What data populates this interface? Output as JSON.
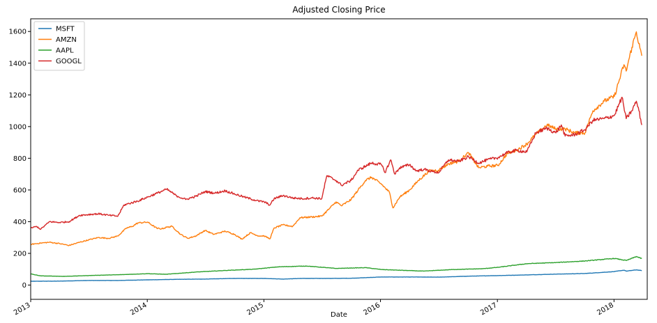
{
  "chart_data": {
    "type": "line",
    "title": "Adjusted Closing Price",
    "xlabel": "Date",
    "ylabel": "",
    "xlim": [
      "2013-01-01",
      "2018-04-15"
    ],
    "ylim": [
      -90,
      1680
    ],
    "x_ticks": [
      "2013",
      "2014",
      "2015",
      "2016",
      "2017",
      "2018"
    ],
    "y_ticks": [
      "0",
      "200",
      "400",
      "600",
      "800",
      "1000",
      "1200",
      "1400",
      "1600"
    ],
    "grid": false,
    "legend": {
      "position": "top-left"
    },
    "series": [
      {
        "name": "MSFT",
        "color": "#1f77b4",
        "points": [
          [
            "2013-01-02",
            24
          ],
          [
            "2013-04-01",
            25
          ],
          [
            "2013-07-01",
            29
          ],
          [
            "2013-10-01",
            29
          ],
          [
            "2014-01-02",
            33
          ],
          [
            "2014-04-01",
            36
          ],
          [
            "2014-07-01",
            38
          ],
          [
            "2014-10-01",
            42
          ],
          [
            "2015-01-02",
            42
          ],
          [
            "2015-03-01",
            38
          ],
          [
            "2015-05-01",
            42
          ],
          [
            "2015-07-01",
            42
          ],
          [
            "2015-10-01",
            43
          ],
          [
            "2016-01-04",
            51
          ],
          [
            "2016-04-01",
            51
          ],
          [
            "2016-07-01",
            50
          ],
          [
            "2016-10-01",
            56
          ],
          [
            "2017-01-03",
            60
          ],
          [
            "2017-04-01",
            64
          ],
          [
            "2017-07-01",
            69
          ],
          [
            "2017-10-02",
            73
          ],
          [
            "2018-01-02",
            85
          ],
          [
            "2018-02-01",
            94
          ],
          [
            "2018-02-09",
            88
          ],
          [
            "2018-03-12",
            96
          ],
          [
            "2018-03-29",
            91
          ]
        ]
      },
      {
        "name": "AMZN",
        "color": "#ff7f0e",
        "points": [
          [
            "2013-01-02",
            257
          ],
          [
            "2013-02-01",
            265
          ],
          [
            "2013-03-01",
            270
          ],
          [
            "2013-04-01",
            262
          ],
          [
            "2013-05-01",
            250
          ],
          [
            "2013-06-03",
            270
          ],
          [
            "2013-07-01",
            285
          ],
          [
            "2013-08-01",
            300
          ],
          [
            "2013-09-03",
            295
          ],
          [
            "2013-10-01",
            310
          ],
          [
            "2013-10-28",
            360
          ],
          [
            "2013-11-15",
            370
          ],
          [
            "2013-12-02",
            392
          ],
          [
            "2014-01-02",
            397
          ],
          [
            "2014-01-31",
            358
          ],
          [
            "2014-02-15",
            355
          ],
          [
            "2014-03-03",
            365
          ],
          [
            "2014-03-20",
            370
          ],
          [
            "2014-04-15",
            320
          ],
          [
            "2014-05-08",
            295
          ],
          [
            "2014-06-02",
            310
          ],
          [
            "2014-07-01",
            345
          ],
          [
            "2014-07-28",
            320
          ],
          [
            "2014-08-15",
            330
          ],
          [
            "2014-09-02",
            340
          ],
          [
            "2014-10-01",
            320
          ],
          [
            "2014-10-24",
            290
          ],
          [
            "2014-11-20",
            330
          ],
          [
            "2014-12-15",
            310
          ],
          [
            "2015-01-02",
            310
          ],
          [
            "2015-01-20",
            292
          ],
          [
            "2015-02-02",
            360
          ],
          [
            "2015-03-02",
            380
          ],
          [
            "2015-04-01",
            370
          ],
          [
            "2015-04-24",
            425
          ],
          [
            "2015-06-01",
            430
          ],
          [
            "2015-07-01",
            435
          ],
          [
            "2015-07-24",
            480
          ],
          [
            "2015-08-15",
            525
          ],
          [
            "2015-09-01",
            500
          ],
          [
            "2015-10-01",
            540
          ],
          [
            "2015-10-23",
            600
          ],
          [
            "2015-11-15",
            660
          ],
          [
            "2015-12-04",
            680
          ],
          [
            "2016-01-04",
            637
          ],
          [
            "2016-01-29",
            585
          ],
          [
            "2016-02-09",
            487
          ],
          [
            "2016-03-01",
            555
          ],
          [
            "2016-04-01",
            600
          ],
          [
            "2016-04-29",
            660
          ],
          [
            "2016-06-01",
            720
          ],
          [
            "2016-07-01",
            725
          ],
          [
            "2016-08-01",
            765
          ],
          [
            "2016-09-01",
            780
          ],
          [
            "2016-10-03",
            835
          ],
          [
            "2016-11-03",
            740
          ],
          [
            "2016-12-01",
            750
          ],
          [
            "2017-01-03",
            755
          ],
          [
            "2017-02-01",
            830
          ],
          [
            "2017-03-01",
            850
          ],
          [
            "2017-04-03",
            890
          ],
          [
            "2017-05-01",
            950
          ],
          [
            "2017-06-05",
            1010
          ],
          [
            "2017-07-03",
            985
          ],
          [
            "2017-08-01",
            985
          ],
          [
            "2017-09-01",
            960
          ],
          [
            "2017-10-02",
            960
          ],
          [
            "2017-10-27",
            1100
          ],
          [
            "2017-12-01",
            1160
          ],
          [
            "2018-01-02",
            1190
          ],
          [
            "2018-02-01",
            1390
          ],
          [
            "2018-02-08",
            1350
          ],
          [
            "2018-02-26",
            1500
          ],
          [
            "2018-03-12",
            1598
          ],
          [
            "2018-03-23",
            1495
          ],
          [
            "2018-03-29",
            1447
          ]
        ]
      },
      {
        "name": "AAPL",
        "color": "#2ca02c",
        "points": [
          [
            "2013-01-02",
            70
          ],
          [
            "2013-02-01",
            58
          ],
          [
            "2013-04-15",
            55
          ],
          [
            "2013-06-01",
            58
          ],
          [
            "2013-08-01",
            62
          ],
          [
            "2013-10-01",
            65
          ],
          [
            "2014-01-02",
            72
          ],
          [
            "2014-03-01",
            68
          ],
          [
            "2014-06-01",
            82
          ],
          [
            "2014-09-01",
            92
          ],
          [
            "2014-12-01",
            100
          ],
          [
            "2015-02-15",
            115
          ],
          [
            "2015-05-15",
            120
          ],
          [
            "2015-08-15",
            105
          ],
          [
            "2015-11-15",
            110
          ],
          [
            "2016-01-04",
            98
          ],
          [
            "2016-05-15",
            88
          ],
          [
            "2016-08-15",
            98
          ],
          [
            "2016-11-15",
            103
          ],
          [
            "2017-01-03",
            112
          ],
          [
            "2017-04-03",
            135
          ],
          [
            "2017-07-03",
            142
          ],
          [
            "2017-10-02",
            152
          ],
          [
            "2018-01-02",
            168
          ],
          [
            "2018-02-09",
            155
          ],
          [
            "2018-03-12",
            180
          ],
          [
            "2018-03-29",
            167
          ]
        ]
      },
      {
        "name": "GOOGL",
        "color": "#d62728",
        "points": [
          [
            "2013-01-02",
            360
          ],
          [
            "2013-01-20",
            370
          ],
          [
            "2013-02-01",
            352
          ],
          [
            "2013-03-01",
            400
          ],
          [
            "2013-04-01",
            395
          ],
          [
            "2013-05-01",
            400
          ],
          [
            "2013-06-03",
            440
          ],
          [
            "2013-07-01",
            445
          ],
          [
            "2013-08-01",
            450
          ],
          [
            "2013-09-03",
            440
          ],
          [
            "2013-10-01",
            435
          ],
          [
            "2013-10-20",
            505
          ],
          [
            "2013-12-02",
            530
          ],
          [
            "2014-01-02",
            555
          ],
          [
            "2014-02-01",
            580
          ],
          [
            "2014-03-03",
            605
          ],
          [
            "2014-04-01",
            565
          ],
          [
            "2014-05-01",
            540
          ],
          [
            "2014-06-02",
            560
          ],
          [
            "2014-07-01",
            590
          ],
          [
            "2014-08-01",
            580
          ],
          [
            "2014-09-02",
            595
          ],
          [
            "2014-10-01",
            575
          ],
          [
            "2014-11-01",
            555
          ],
          [
            "2014-12-15",
            530
          ],
          [
            "2015-01-02",
            525
          ],
          [
            "2015-01-20",
            505
          ],
          [
            "2015-02-02",
            545
          ],
          [
            "2015-03-02",
            565
          ],
          [
            "2015-04-01",
            550
          ],
          [
            "2015-05-01",
            545
          ],
          [
            "2015-06-01",
            550
          ],
          [
            "2015-07-01",
            545
          ],
          [
            "2015-07-17",
            690
          ],
          [
            "2015-08-15",
            660
          ],
          [
            "2015-09-01",
            630
          ],
          [
            "2015-10-01",
            660
          ],
          [
            "2015-10-23",
            725
          ],
          [
            "2015-11-15",
            750
          ],
          [
            "2015-12-04",
            770
          ],
          [
            "2016-01-04",
            760
          ],
          [
            "2016-01-15",
            710
          ],
          [
            "2016-02-02",
            790
          ],
          [
            "2016-02-15",
            700
          ],
          [
            "2016-03-01",
            740
          ],
          [
            "2016-04-01",
            760
          ],
          [
            "2016-04-22",
            720
          ],
          [
            "2016-05-15",
            730
          ],
          [
            "2016-06-15",
            715
          ],
          [
            "2016-07-01",
            710
          ],
          [
            "2016-08-01",
            790
          ],
          [
            "2016-09-01",
            780
          ],
          [
            "2016-10-03",
            810
          ],
          [
            "2016-11-03",
            770
          ],
          [
            "2016-12-01",
            790
          ],
          [
            "2017-01-03",
            805
          ],
          [
            "2017-02-01",
            835
          ],
          [
            "2017-03-01",
            850
          ],
          [
            "2017-04-03",
            840
          ],
          [
            "2017-05-01",
            960
          ],
          [
            "2017-06-05",
            990
          ],
          [
            "2017-07-03",
            960
          ],
          [
            "2017-07-20",
            1010
          ],
          [
            "2017-08-01",
            940
          ],
          [
            "2017-09-01",
            950
          ],
          [
            "2017-10-02",
            980
          ],
          [
            "2017-10-27",
            1040
          ],
          [
            "2017-12-01",
            1050
          ],
          [
            "2018-01-02",
            1070
          ],
          [
            "2018-01-26",
            1185
          ],
          [
            "2018-02-08",
            1050
          ],
          [
            "2018-02-26",
            1100
          ],
          [
            "2018-03-12",
            1160
          ],
          [
            "2018-03-20",
            1100
          ],
          [
            "2018-03-29",
            1010
          ]
        ]
      }
    ]
  }
}
